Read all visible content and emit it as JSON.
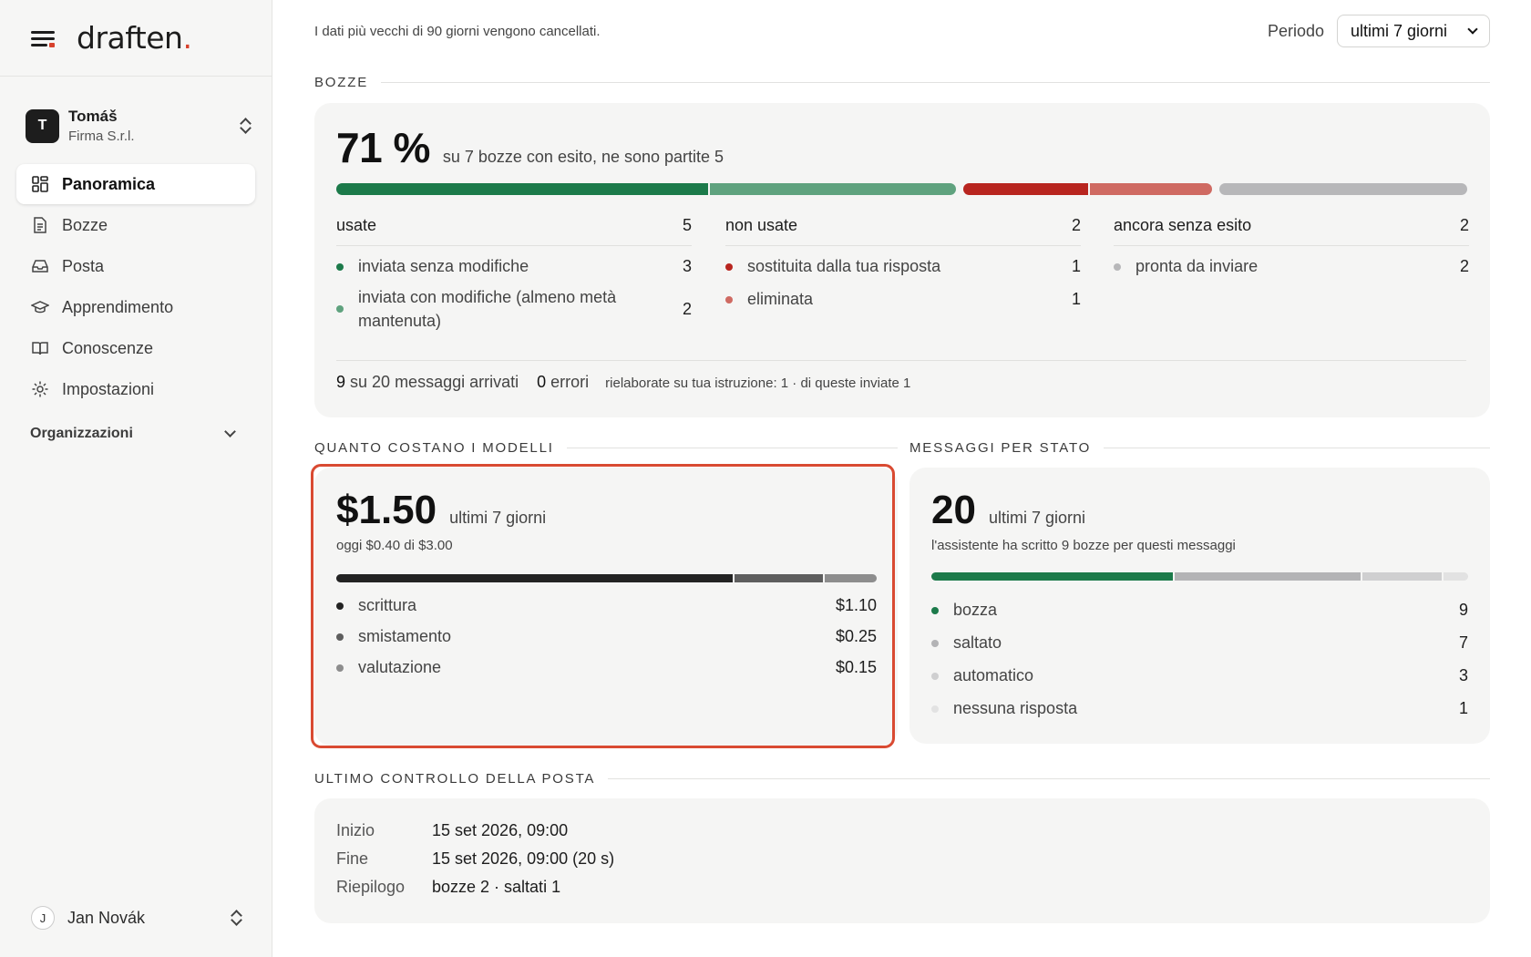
{
  "sidebar": {
    "brand": {
      "name": "draften",
      "dot": "."
    },
    "account": {
      "initial": "T",
      "name": "Tomáš",
      "org": "Firma S.r.l."
    },
    "nav": [
      {
        "label": "Panoramica",
        "icon": "dashboard-icon",
        "active": true
      },
      {
        "label": "Bozze",
        "icon": "document-icon"
      },
      {
        "label": "Posta",
        "icon": "inbox-icon"
      },
      {
        "label": "Apprendimento",
        "icon": "graduation-cap-icon"
      },
      {
        "label": "Conoscenze",
        "icon": "book-icon"
      },
      {
        "label": "Impostazioni",
        "icon": "gear-icon"
      }
    ],
    "organizations_label": "Organizzazioni",
    "user": {
      "initial": "J",
      "name": "Jan Novák"
    }
  },
  "topbar": {
    "retention_note": "I dati più vecchi di 90 giorni vengono cancellati.",
    "period_label": "Periodo",
    "period_value": "ultimi 7 giorni"
  },
  "bozze": {
    "section_title": "BOZZE",
    "percent": "71 %",
    "summary": "su 7 bozze con esito, ne sono partite 5",
    "bar_segments": [
      {
        "name": "inviata senza modifiche",
        "value": 3,
        "color": "#1c7a4a"
      },
      {
        "name": "inviata con modifiche",
        "value": 2,
        "color": "#5fa27e"
      },
      {
        "name": "sostituita dalla tua risposta",
        "value": 1,
        "color": "#b8251f"
      },
      {
        "name": "eliminata",
        "value": 1,
        "color": "#cf6a62"
      },
      {
        "name": "pronta da inviare",
        "value": 2,
        "color": "#b7b7b9"
      }
    ],
    "columns": [
      {
        "title": "usate",
        "total": "5",
        "items": [
          {
            "label": "inviata senza modifiche",
            "value": "3",
            "color": "#1c7a4a"
          },
          {
            "label": "inviata con modifiche (almeno metà mantenuta)",
            "value": "2",
            "color": "#5fa27e"
          }
        ]
      },
      {
        "title": "non usate",
        "total": "2",
        "items": [
          {
            "label": "sostituita dalla tua risposta",
            "value": "1",
            "color": "#b8251f"
          },
          {
            "label": "eliminata",
            "value": "1",
            "color": "#cf6a62"
          }
        ]
      },
      {
        "title": "ancora senza esito",
        "total": "2",
        "items": [
          {
            "label": "pronta da inviare",
            "value": "2",
            "color": "#b7b7b9"
          }
        ]
      }
    ],
    "footer": {
      "arrived_count": "9",
      "arrived_text": "su 20 messaggi arrivati",
      "errors_count": "0",
      "errors_text": "errori",
      "reworked": "rielaborate su tua istruzione: 1 · di queste inviate 1"
    }
  },
  "costs": {
    "section_title": "QUANTO COSTANO I MODELLI",
    "total": "$1.50",
    "period": "ultimi 7 giorni",
    "today": "oggi $0.40 di $3.00",
    "items": [
      {
        "label": "scrittura",
        "value": "$1.10",
        "amount": 1.1,
        "color": "#232323"
      },
      {
        "label": "smistamento",
        "value": "$0.25",
        "amount": 0.25,
        "color": "#5e5e5e"
      },
      {
        "label": "valutazione",
        "value": "$0.15",
        "amount": 0.15,
        "color": "#8d8d8d"
      }
    ]
  },
  "messages": {
    "section_title": "MESSAGGI PER STATO",
    "total": "20",
    "period": "ultimi 7 giorni",
    "note": "l'assistente ha scritto 9 bozze per questi messaggi",
    "items": [
      {
        "label": "bozza",
        "value": "9",
        "count": 9,
        "color": "#1c7a4a"
      },
      {
        "label": "saltato",
        "value": "7",
        "count": 7,
        "color": "#b3b3b5"
      },
      {
        "label": "automatico",
        "value": "3",
        "count": 3,
        "color": "#cfcfd0"
      },
      {
        "label": "nessuna risposta",
        "value": "1",
        "count": 1,
        "color": "#e2e2e2"
      }
    ]
  },
  "last_check": {
    "section_title": "ULTIMO CONTROLLO DELLA POSTA",
    "rows": [
      {
        "key": "Inizio",
        "value": "15 set 2026, 09:00"
      },
      {
        "key": "Fine",
        "value": "15 set 2026, 09:00 (20 s)"
      },
      {
        "key": "Riepilogo",
        "value": "bozze 2 · saltati 1"
      }
    ]
  }
}
